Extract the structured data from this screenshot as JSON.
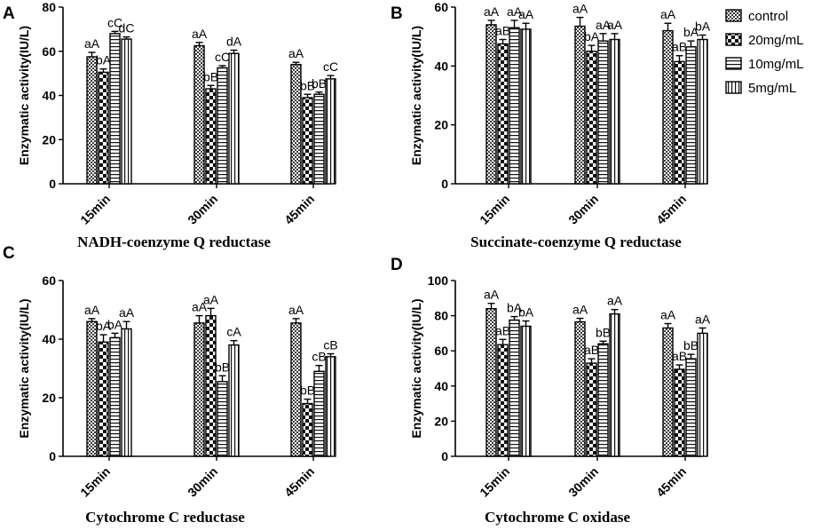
{
  "legend": {
    "position": "top-right",
    "entries": [
      "control",
      "20mg/mL",
      "10mg/mL",
      "5mg/mL"
    ]
  },
  "chart_data": [
    {
      "type": "bar",
      "panel_letter": "A",
      "title": "NADH-coenzyme Q reductase",
      "xlabel": "",
      "ylabel": "Enzymatic activity(IU/L)",
      "ylim": [
        0,
        80
      ],
      "yticks": [
        0,
        20,
        40,
        60,
        80
      ],
      "categories": [
        "15min",
        "30min",
        "45min"
      ],
      "series": [
        {
          "name": "control",
          "values": [
            57.5,
            62.5,
            54
          ],
          "errors": [
            2,
            1.5,
            1
          ],
          "labels": [
            "aA",
            "aA",
            "aA"
          ]
        },
        {
          "name": "20mg/mL",
          "values": [
            50.5,
            43,
            39
          ],
          "errors": [
            1.5,
            1.5,
            1.5
          ],
          "labels": [
            "bA",
            "bB",
            "bB"
          ]
        },
        {
          "name": "10mg/mL",
          "values": [
            68,
            52.5,
            40.5
          ],
          "errors": [
            1,
            1,
            1
          ],
          "labels": [
            "cC",
            "cC",
            "bB"
          ]
        },
        {
          "name": "5mg/mL",
          "values": [
            65.5,
            59,
            47.5
          ],
          "errors": [
            1,
            1.5,
            1.5
          ],
          "labels": [
            "dC",
            "dA",
            "cC"
          ]
        }
      ]
    },
    {
      "type": "bar",
      "panel_letter": "B",
      "title": "Succinate-coenzyme Q reductase",
      "xlabel": "",
      "ylabel": "Enzymatic activity(IU/L)",
      "ylim": [
        0,
        60
      ],
      "yticks": [
        0,
        20,
        40,
        60
      ],
      "categories": [
        "15min",
        "30min",
        "45min"
      ],
      "series": [
        {
          "name": "control",
          "values": [
            54,
            53.5,
            52
          ],
          "errors": [
            1.5,
            3,
            2.5
          ],
          "labels": [
            "aA",
            "aA",
            "aA"
          ]
        },
        {
          "name": "20mg/mL",
          "values": [
            47.5,
            45,
            41.5
          ],
          "errors": [
            1.5,
            2,
            2
          ],
          "labels": [
            "aB",
            "bA",
            "aB"
          ]
        },
        {
          "name": "10mg/mL",
          "values": [
            53,
            48.5,
            46.5
          ],
          "errors": [
            2.5,
            2.5,
            2
          ],
          "labels": [
            "aA",
            "aA",
            "bA"
          ]
        },
        {
          "name": "5mg/mL",
          "values": [
            52.5,
            49,
            49
          ],
          "errors": [
            2,
            2,
            1.5
          ],
          "labels": [
            "aA",
            "aA",
            "bA"
          ]
        }
      ]
    },
    {
      "type": "bar",
      "panel_letter": "C",
      "title": "Cytochrome C reductase",
      "xlabel": "",
      "ylabel": "Enzymatic activity(IU/L)",
      "ylim": [
        0,
        60
      ],
      "yticks": [
        0,
        20,
        40,
        60
      ],
      "categories": [
        "15min",
        "30min",
        "45min"
      ],
      "series": [
        {
          "name": "control",
          "values": [
            46,
            45.5,
            45.5
          ],
          "errors": [
            1,
            2.5,
            1.5
          ],
          "labels": [
            "aA",
            "aA",
            "aA"
          ]
        },
        {
          "name": "20mg/mL",
          "values": [
            39,
            48,
            18
          ],
          "errors": [
            2.5,
            2.5,
            1.5
          ],
          "labels": [
            "bA",
            "aA",
            "bB"
          ]
        },
        {
          "name": "10mg/mL",
          "values": [
            40.5,
            25.5,
            29
          ],
          "errors": [
            1.5,
            2,
            2
          ],
          "labels": [
            "bA",
            "bB",
            "cB"
          ]
        },
        {
          "name": "5mg/mL",
          "values": [
            43.5,
            38,
            34
          ],
          "errors": [
            2.5,
            1.5,
            1
          ],
          "labels": [
            "aA",
            "cA",
            "cB"
          ]
        }
      ]
    },
    {
      "type": "bar",
      "panel_letter": "D",
      "title": "Cytochrome C oxidase",
      "xlabel": "",
      "ylabel": "Enzymatic activity(IU/L)",
      "ylim": [
        0,
        100
      ],
      "yticks": [
        0,
        20,
        40,
        60,
        80,
        100
      ],
      "categories": [
        "15min",
        "30min",
        "45min"
      ],
      "series": [
        {
          "name": "control",
          "values": [
            84,
            76.5,
            73
          ],
          "errors": [
            3,
            2,
            2.5
          ],
          "labels": [
            "aA",
            "aA",
            "aA"
          ]
        },
        {
          "name": "20mg/mL",
          "values": [
            63.5,
            53,
            49.5
          ],
          "errors": [
            3,
            2.5,
            2.5
          ],
          "labels": [
            "aB",
            "aB",
            "aB"
          ]
        },
        {
          "name": "10mg/mL",
          "values": [
            77.5,
            64,
            55.5
          ],
          "errors": [
            2,
            1.5,
            2.5
          ],
          "labels": [
            "bA",
            "bB",
            "bB"
          ]
        },
        {
          "name": "5mg/mL",
          "values": [
            74,
            81,
            70
          ],
          "errors": [
            3,
            2.5,
            3
          ],
          "labels": [
            "bA",
            "aA",
            "aA"
          ]
        }
      ]
    }
  ]
}
